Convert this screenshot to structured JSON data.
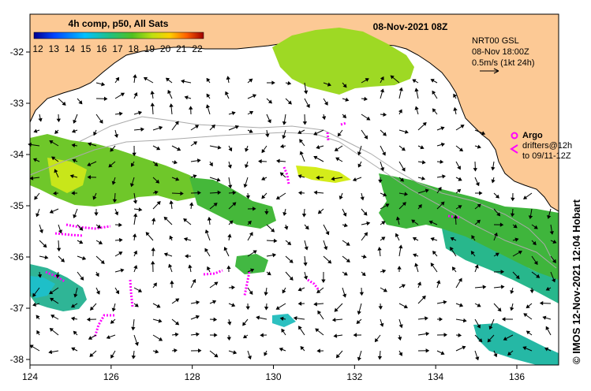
{
  "colorbar": {
    "title": "4h comp, p50, All Sats",
    "ticks": [
      "12",
      "13",
      "14",
      "15",
      "16",
      "17",
      "18",
      "19",
      "20",
      "21",
      "22"
    ]
  },
  "header": {
    "datetime": "08-Nov-2021 08Z"
  },
  "current_info": {
    "line1": "NRT00 GSL",
    "line2": "08-Nov 18:00Z",
    "line3": "0.5m/s (1kt 24h)"
  },
  "argo_legend": {
    "label": "Argo",
    "drifters": "drifters@12h",
    "to": "to 09/11-12Z"
  },
  "axes": {
    "x_ticks": [
      "124",
      "126",
      "128",
      "130",
      "132",
      "134",
      "136"
    ],
    "y_ticks": [
      "-32",
      "-33",
      "-34",
      "-35",
      "-36",
      "-37",
      "-38"
    ]
  },
  "credit": "© IMOS 12-Nov-2021 12:04 Hobart",
  "colors": {
    "land": "#fcc995",
    "sea_bg": "#ffffff",
    "argo": "#ff00ff",
    "sst_green": "#55c22a",
    "sst_yellowgreen": "#a8df1e",
    "sst_teal": "#22b38a",
    "sst_cyan": "#1fb6c8"
  }
}
